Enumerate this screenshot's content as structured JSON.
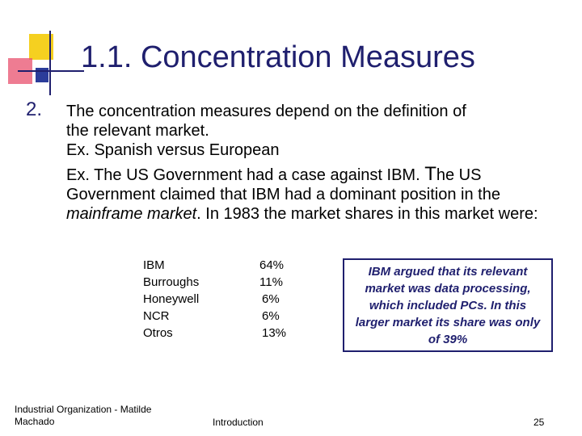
{
  "slide": {
    "title": "1.1. Concentration Measures",
    "bullet_number": "2.",
    "paragraph1_line1": "The concentration measures depend on the definition of",
    "paragraph1_line2": "the relevant market.",
    "paragraph1_line3": "Ex. Spanish versus European",
    "paragraph2_part1": "Ex. The US Government had a case against IBM. ",
    "paragraph2_big_t": "T",
    "paragraph2_part2": "he US Government claimed that IBM had a dominant position in the ",
    "paragraph2_italic": "mainframe market",
    "paragraph2_part3": ". In 1983 the market shares in this market were:",
    "market_shares": [
      {
        "company": "IBM",
        "share": "64%"
      },
      {
        "company": "Burroughs",
        "share": "11%"
      },
      {
        "company": "Honeywell",
        "share": "6%"
      },
      {
        "company": "NCR",
        "share": "6%"
      },
      {
        "company": "Otros",
        "share": "13%"
      }
    ],
    "callout": "IBM argued that its relevant market was data processing, which included PCs. In this larger market its share was only of 39%"
  },
  "footer": {
    "left": "Industrial Organization - Matilde Machado",
    "center": "Introduction",
    "page_number": "25"
  },
  "colors": {
    "title": "#1f1f6e",
    "logo_yellow": "#f5d020",
    "logo_red": "#e8506e",
    "logo_blue": "#2b3c9a",
    "logo_line": "#1f1f6e"
  }
}
